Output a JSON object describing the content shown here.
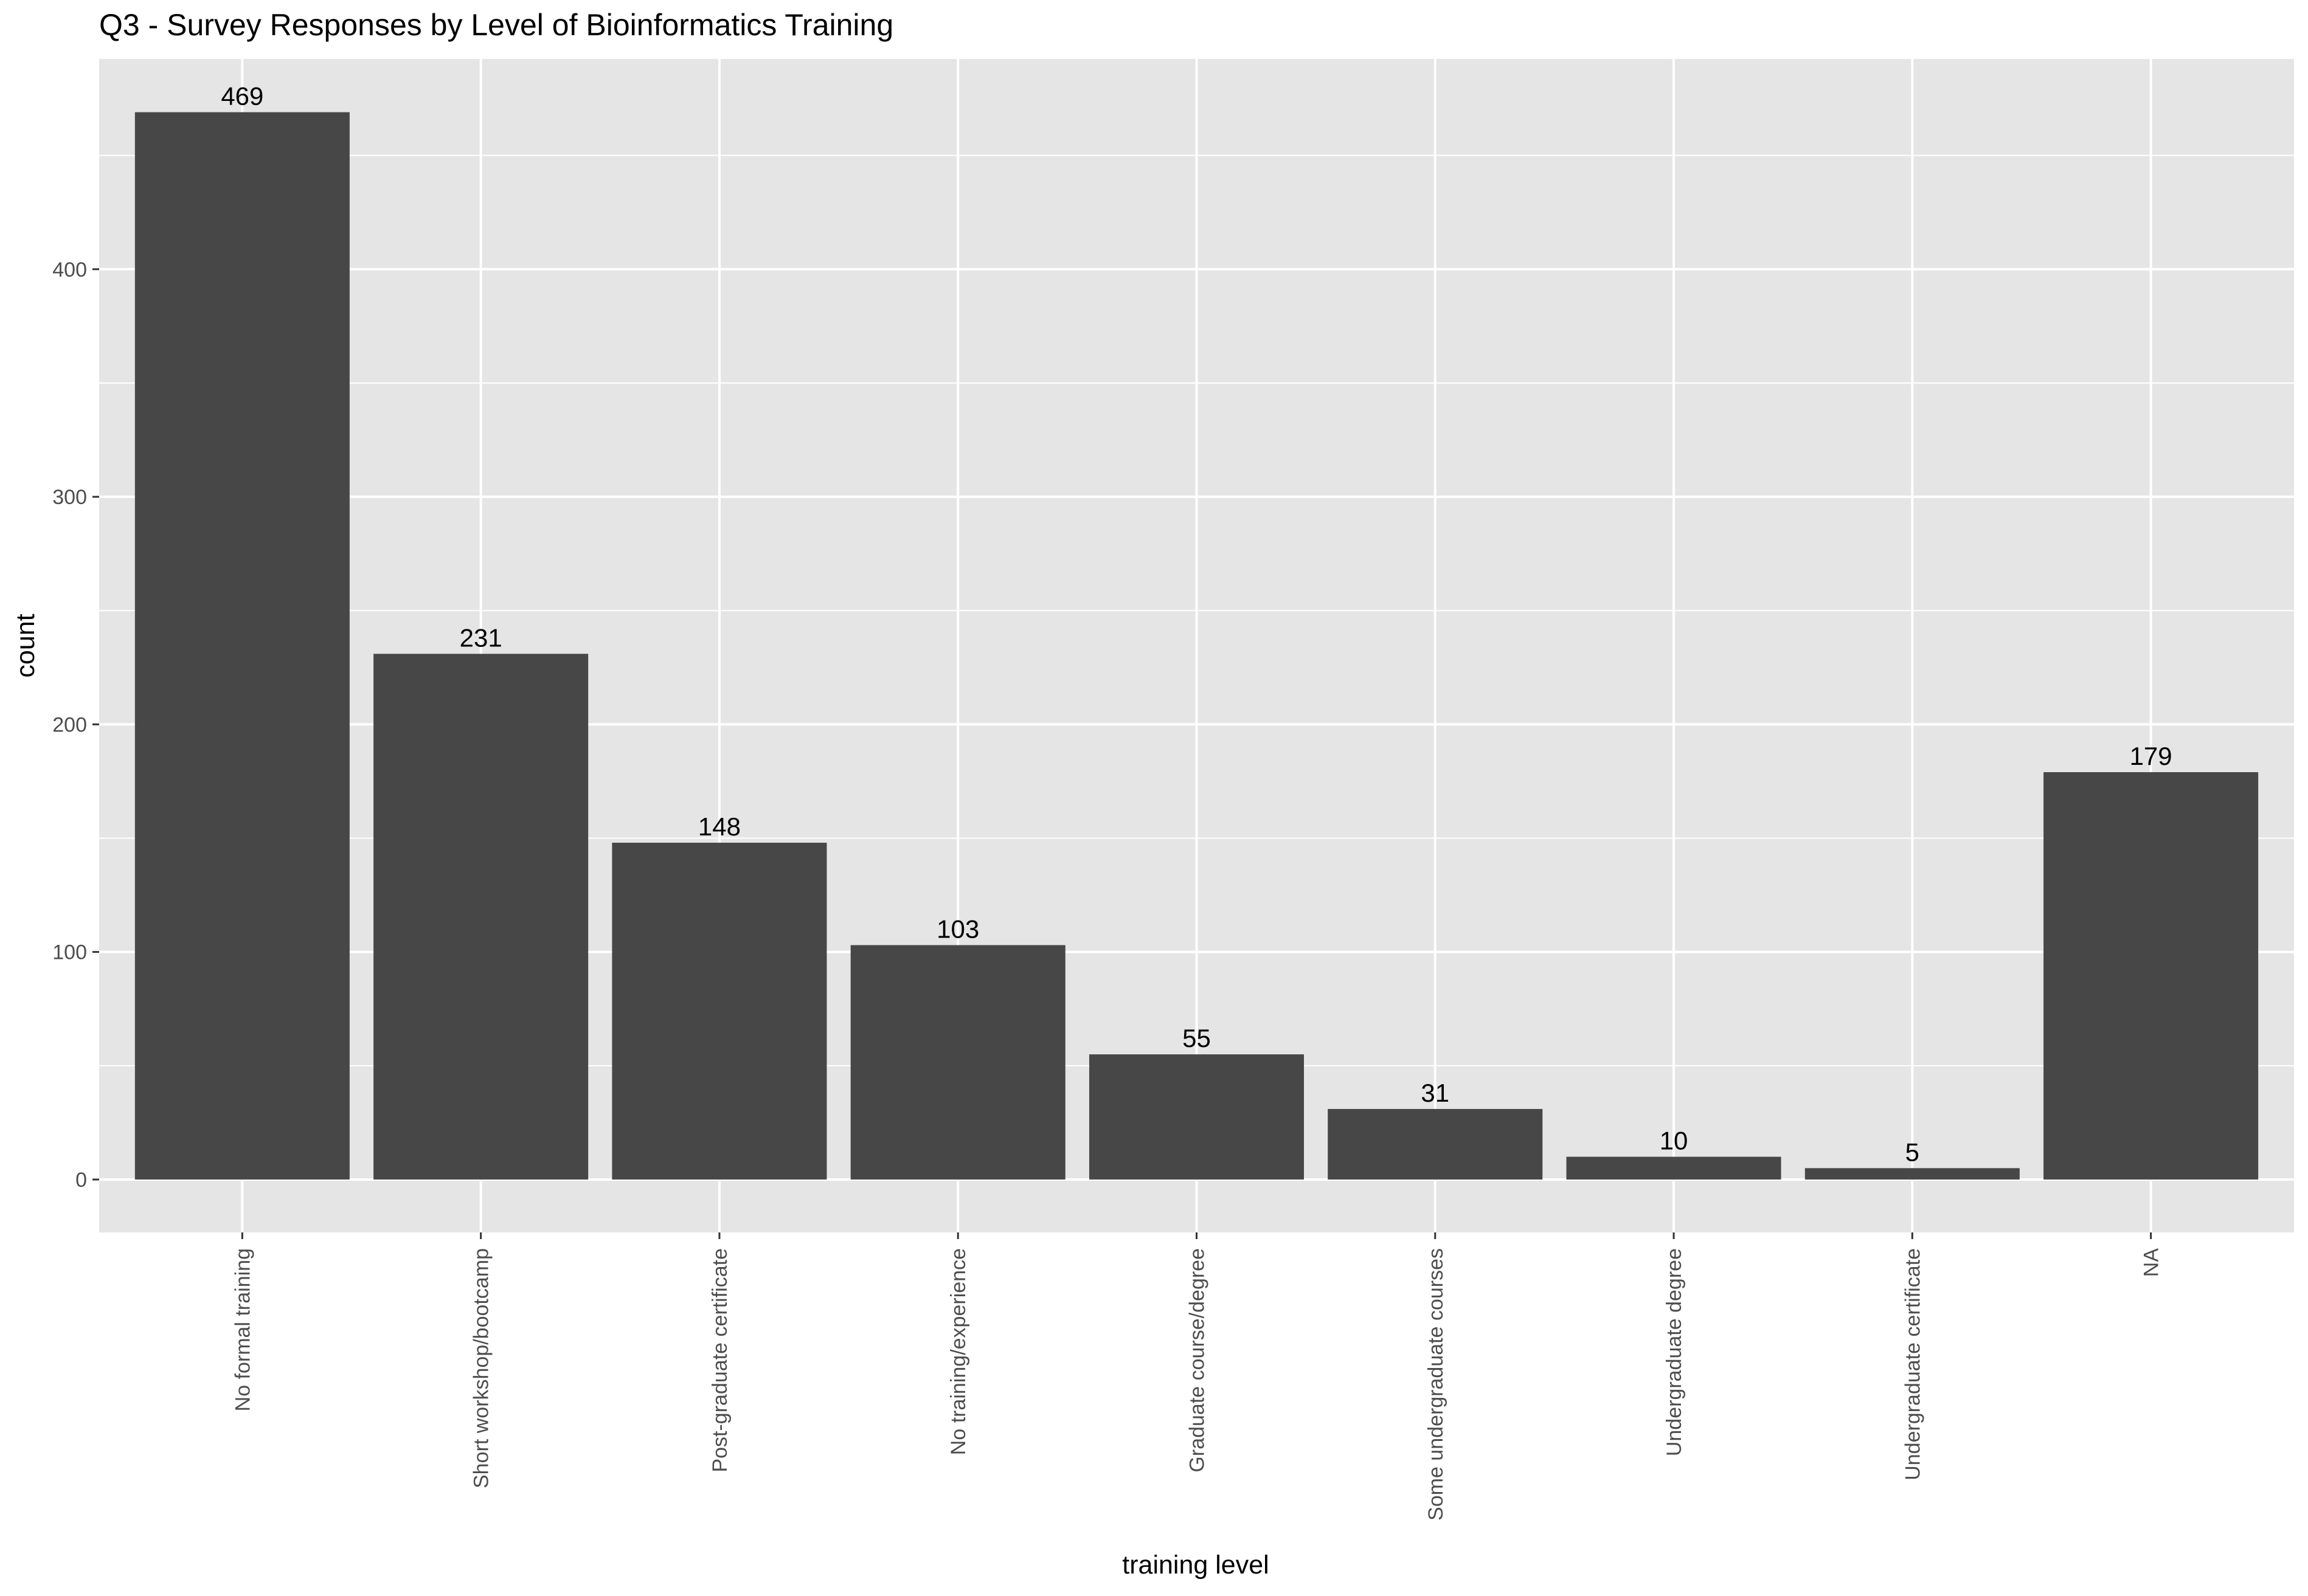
{
  "chart_data": {
    "type": "bar",
    "title": "Q3 - Survey Responses by Level of Bioinformatics Training",
    "xlabel": "training level",
    "ylabel": "count",
    "ylim": [
      0,
      500
    ],
    "yticks": [
      0,
      100,
      200,
      300,
      400
    ],
    "grid": true,
    "categories": [
      "No formal training",
      "Short workshop/bootcamp",
      "Post-graduate certificate",
      "No training/experience",
      "Graduate course/degree",
      "Some undergraduate courses",
      "Undergraduate degree",
      "Undergraduate certificate",
      "NA"
    ],
    "values": [
      469,
      231,
      148,
      103,
      55,
      31,
      10,
      5,
      179
    ],
    "data_labels": [
      "469",
      "231",
      "148",
      "103",
      "55",
      "31",
      "10",
      "5",
      "179"
    ],
    "colors": {
      "bar": "#474747",
      "panel_background": "#e5e5e5",
      "grid": "#ffffff",
      "tick": "#333333"
    }
  }
}
